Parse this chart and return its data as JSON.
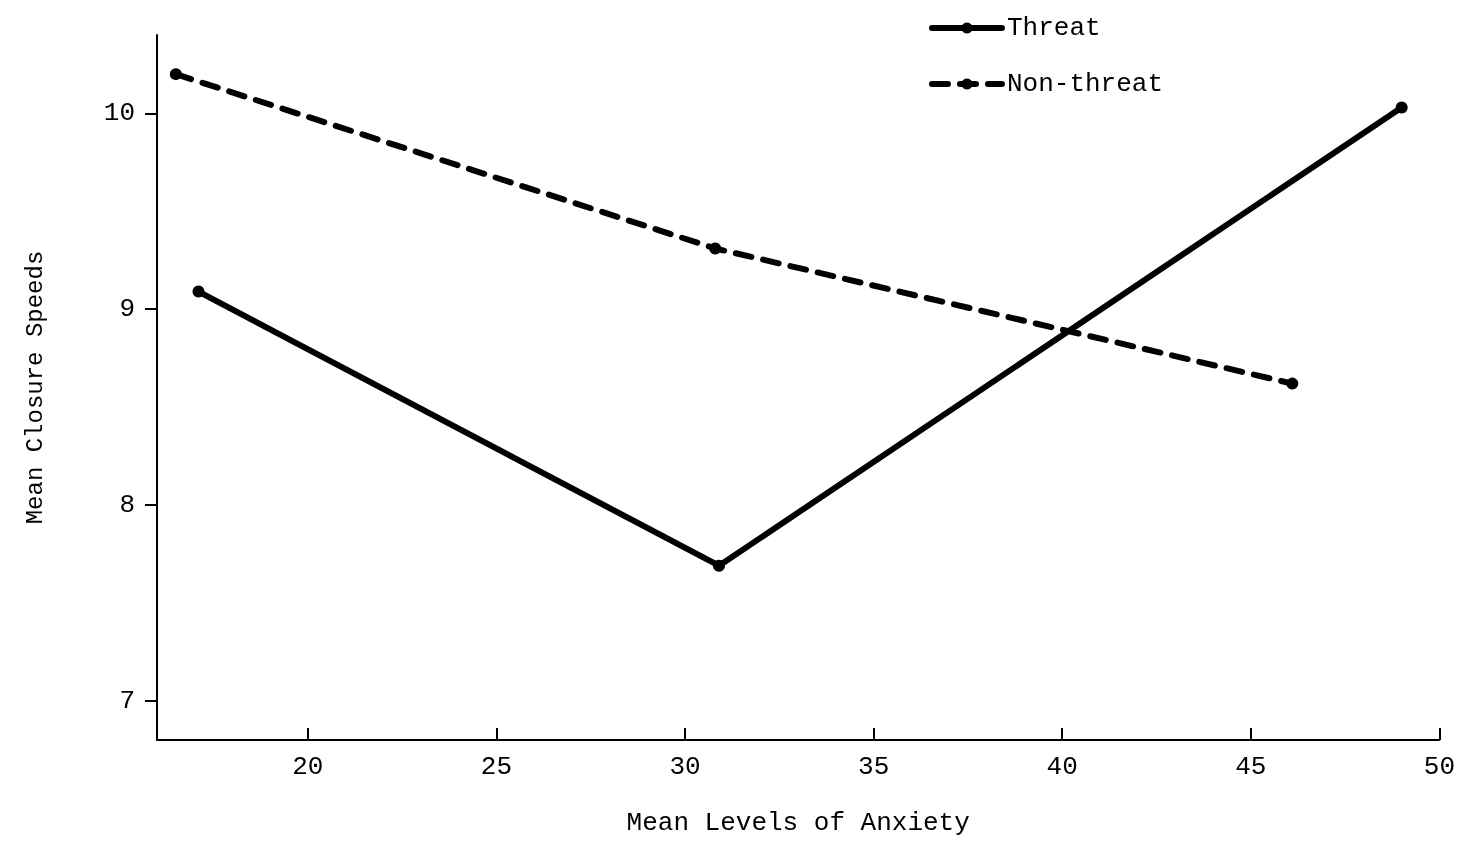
{
  "chart_data": {
    "type": "line",
    "xlabel": "Mean Levels of Anxiety",
    "ylabel": "Mean Closure Speeds",
    "xlim": [
      16,
      50
    ],
    "xticks": [
      20,
      25,
      30,
      35,
      40,
      45,
      50
    ],
    "ylim": [
      6.8,
      10.4
    ],
    "yticks": [
      7,
      8,
      9,
      10
    ],
    "grid": false,
    "legend": "top right",
    "marker": "circle",
    "series": [
      {
        "name": "Threat",
        "color": "#000000",
        "line_style": "solid",
        "x": [
          17.1,
          30.9,
          49.0
        ],
        "values": [
          9.09,
          7.69,
          10.03
        ]
      },
      {
        "name": "Non-threat",
        "color": "#000000",
        "line_style": "dashed",
        "x": [
          16.5,
          30.8,
          46.1
        ],
        "values": [
          10.2,
          9.31,
          8.62
        ]
      }
    ]
  }
}
